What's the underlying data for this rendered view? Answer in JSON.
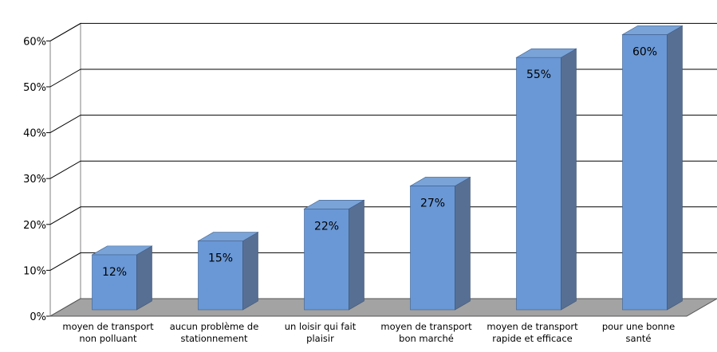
{
  "chart_data": {
    "type": "bar",
    "style": "3d-column",
    "categories": [
      [
        "moyen de transport",
        "non polluant"
      ],
      [
        "aucun problème de",
        "stationnement"
      ],
      [
        "un loisir qui fait",
        "plaisir"
      ],
      [
        "moyen de transport",
        "bon marché"
      ],
      [
        "moyen de transport",
        "rapide et efficace"
      ],
      [
        "pour une bonne",
        "santé"
      ]
    ],
    "values": [
      12,
      15,
      22,
      27,
      55,
      60
    ],
    "data_labels": [
      "12%",
      "15%",
      "22%",
      "27%",
      "55%",
      "60%"
    ],
    "y_ticks": [
      "0%",
      "10%",
      "20%",
      "30%",
      "40%",
      "50%",
      "60%"
    ],
    "ylim": [
      0,
      60
    ],
    "title": "",
    "xlabel": "",
    "ylabel": "",
    "grid": true,
    "legend": "none",
    "colors": {
      "bar_front": "#6a98d6",
      "bar_top": "#7aa3d7",
      "bar_side": "#586f94",
      "floor": "#a3a3a3",
      "wall": "#ffffff",
      "gridline": "#000000"
    }
  }
}
